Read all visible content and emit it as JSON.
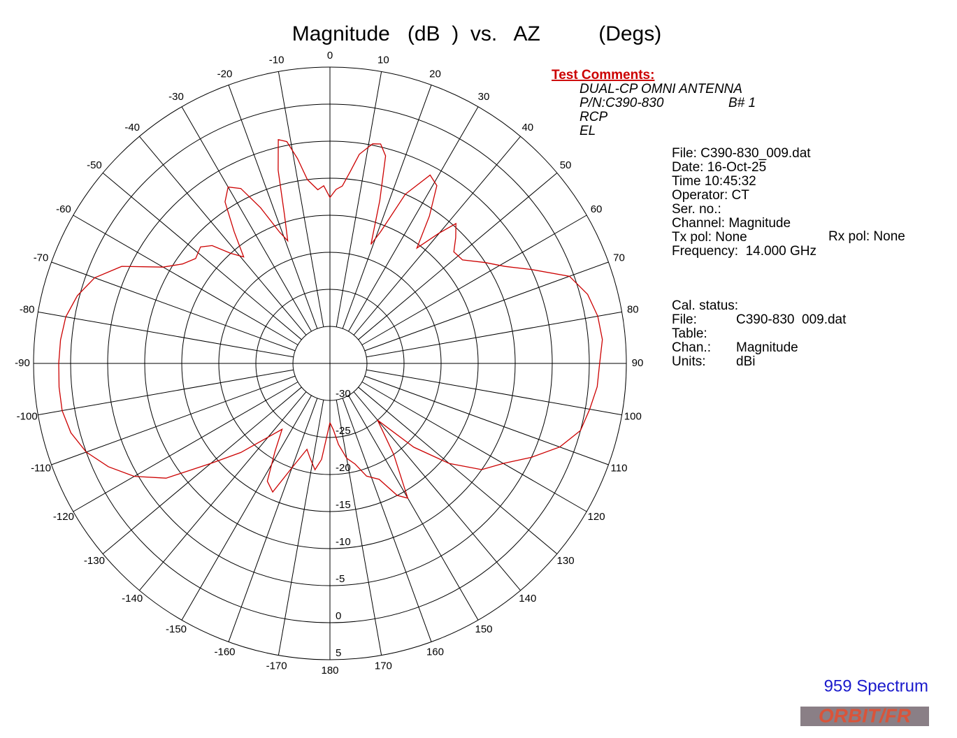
{
  "chart_data": {
    "type": "polar-line",
    "title": "Magnitude   (dB  )  vs.   AZ          (Degs)",
    "color": "#cc0000",
    "rlim": [
      -35,
      5
    ],
    "rticks": [
      -30,
      -25,
      -20,
      -15,
      -10,
      -5,
      0,
      5
    ],
    "thetaticks": [
      -170,
      -160,
      -150,
      -140,
      -130,
      -120,
      -110,
      -100,
      -90,
      -80,
      -70,
      -60,
      -50,
      -40,
      -30,
      -20,
      -10,
      0,
      10,
      20,
      30,
      40,
      50,
      60,
      70,
      80,
      90,
      100,
      110,
      120,
      130,
      140,
      150,
      160,
      170,
      180
    ],
    "x": [
      -180,
      -175,
      -172,
      -168,
      -165,
      -160,
      -156,
      -152,
      -148,
      -144,
      -140,
      -135,
      -130,
      -125,
      -120,
      -115,
      -110,
      -105,
      -100,
      -95,
      -90,
      -85,
      -80,
      -75,
      -70,
      -65,
      -60,
      -56,
      -52,
      -48,
      -45,
      -42,
      -39,
      -36,
      -33,
      -30,
      -27,
      -24,
      -21,
      -19,
      -17,
      -15,
      -13,
      -11,
      -9,
      -7,
      -4,
      -2,
      0,
      2,
      4,
      6,
      8,
      11,
      13,
      15,
      17,
      19,
      21,
      24,
      28,
      31,
      34,
      37,
      40,
      42,
      45,
      48,
      52,
      57,
      61,
      65,
      70,
      75,
      80,
      85,
      90,
      95,
      100,
      105,
      110,
      115,
      120,
      125,
      130,
      135,
      140,
      145,
      150,
      153,
      157,
      162,
      166,
      170,
      174,
      177,
      180
    ],
    "values": [
      -27,
      -22,
      -20.5,
      -22,
      -23,
      -20,
      -16,
      -17,
      -21,
      -24,
      -22,
      -18,
      -14,
      -8,
      -4.5,
      -2,
      0,
      1.2,
      1.7,
      1.7,
      1.6,
      1.5,
      1.2,
      0.3,
      -1.2,
      -4,
      -9,
      -11,
      -12,
      -11.5,
      -12.5,
      -15,
      -16.5,
      -13,
      -9,
      -7.5,
      -8.5,
      -12,
      -16,
      -17.5,
      -14,
      -8,
      -4,
      -4.5,
      -7,
      -10,
      -11.5,
      -11,
      -12.6,
      -11.5,
      -11,
      -9,
      -6.5,
      -4.8,
      -4.6,
      -6,
      -12,
      -18,
      -16,
      -10,
      -6.2,
      -7,
      -11,
      -15.5,
      -12,
      -9.6,
      -11,
      -12.5,
      -12.3,
      -10,
      -8,
      -5,
      -0.6,
      1,
      1.7,
      1.9,
      1.4,
      1.2,
      0.6,
      0,
      -2,
      -5,
      -8,
      -10,
      -14,
      -19,
      -25,
      -20,
      -14,
      -15,
      -18,
      -19,
      -21,
      -22,
      -24,
      -26,
      -27
    ]
  },
  "comments": {
    "header": "Test Comments:",
    "lines": [
      "DUAL-CP OMNI ANTENNA",
      "P/N:C390-830",
      "RCP",
      "EL"
    ],
    "board": "B# 1"
  },
  "info": [
    "File: C390-830_009.dat",
    "Date: 16-Oct-25",
    "Time 10:45:32",
    "Operator: CT",
    "Ser. no.:",
    "Channel: Magnitude",
    "Tx pol: None",
    "Frequency:  14.000 GHz"
  ],
  "rx_pol": "Rx pol: None",
  "cal": {
    "header": "Cal. status:",
    "rows": [
      [
        "File:",
        "C390-830  009.dat"
      ],
      [
        "Table:",
        ""
      ],
      [
        "Chan.:",
        "Magnitude"
      ],
      [
        "Units:",
        "dBi"
      ]
    ]
  },
  "footer": {
    "product": "959 Spectrum",
    "logo": "ORBIT/FR"
  }
}
